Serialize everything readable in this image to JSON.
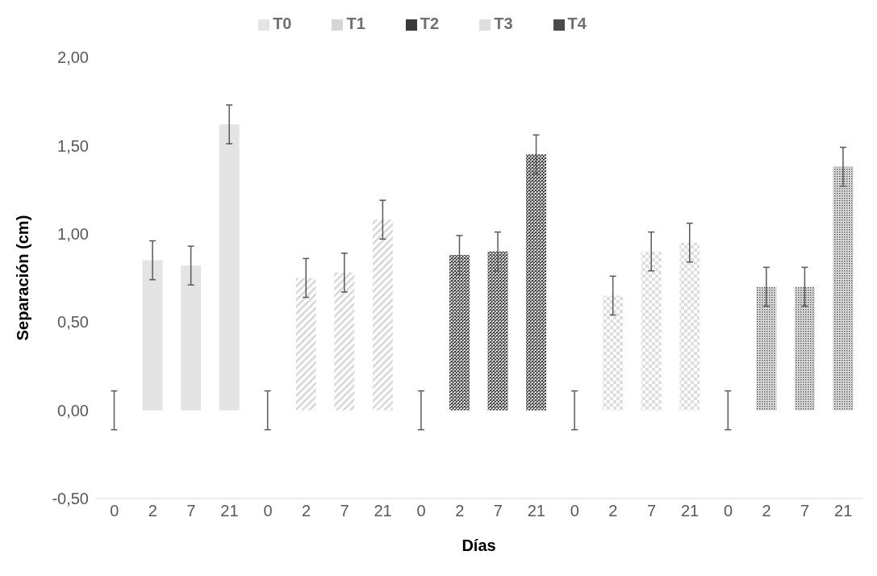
{
  "chart_data": {
    "type": "bar",
    "xlabel": "Días",
    "ylabel": "Separación (cm)",
    "categories": [
      "0",
      "2",
      "7",
      "21",
      "0",
      "2",
      "7",
      "21",
      "0",
      "2",
      "7",
      "21",
      "0",
      "2",
      "7",
      "21",
      "0",
      "2",
      "7",
      "21"
    ],
    "series": [
      {
        "name": "T0",
        "color": "#e4e4e4",
        "values": [
          0,
          0.85,
          0.82,
          1.62,
          null,
          null,
          null,
          null,
          null,
          null,
          null,
          null,
          null,
          null,
          null,
          null,
          null,
          null,
          null,
          null
        ],
        "errors": [
          0.11,
          0.11,
          0.11,
          0.11,
          null,
          null,
          null,
          null,
          null,
          null,
          null,
          null,
          null,
          null,
          null,
          null,
          null,
          null,
          null,
          null
        ]
      },
      {
        "name": "T1",
        "color": "#d6d6d6",
        "values": [
          null,
          null,
          null,
          null,
          0,
          0.75,
          0.78,
          1.08,
          null,
          null,
          null,
          null,
          null,
          null,
          null,
          null,
          null,
          null,
          null,
          null
        ],
        "errors": [
          null,
          null,
          null,
          null,
          0.11,
          0.11,
          0.11,
          0.11,
          null,
          null,
          null,
          null,
          null,
          null,
          null,
          null,
          null,
          null,
          null,
          null
        ]
      },
      {
        "name": "T2",
        "color": "#3a3a3a",
        "values": [
          null,
          null,
          null,
          null,
          null,
          null,
          null,
          null,
          0,
          0.88,
          0.9,
          1.45,
          null,
          null,
          null,
          null,
          null,
          null,
          null,
          null
        ],
        "errors": [
          null,
          null,
          null,
          null,
          null,
          null,
          null,
          null,
          0.11,
          0.11,
          0.11,
          0.11,
          null,
          null,
          null,
          null,
          null,
          null,
          null,
          null
        ]
      },
      {
        "name": "T3",
        "color": "#dedede",
        "values": [
          null,
          null,
          null,
          null,
          null,
          null,
          null,
          null,
          null,
          null,
          null,
          null,
          0,
          0.65,
          0.9,
          0.95,
          null,
          null,
          null,
          null
        ],
        "errors": [
          null,
          null,
          null,
          null,
          null,
          null,
          null,
          null,
          null,
          null,
          null,
          null,
          0.11,
          0.11,
          0.11,
          0.11,
          null,
          null,
          null,
          null
        ]
      },
      {
        "name": "T4",
        "color": "#4a4a4a",
        "values": [
          null,
          null,
          null,
          null,
          null,
          null,
          null,
          null,
          null,
          null,
          null,
          null,
          null,
          null,
          null,
          null,
          0,
          0.7,
          0.7,
          1.38
        ],
        "errors": [
          null,
          null,
          null,
          null,
          null,
          null,
          null,
          null,
          null,
          null,
          null,
          null,
          null,
          null,
          null,
          null,
          0.11,
          0.11,
          0.11,
          0.11
        ]
      }
    ],
    "ylim": [
      -0.5,
      2
    ],
    "yticks": [
      {
        "value": -0.5,
        "label": "-0,50"
      },
      {
        "value": 0,
        "label": "0,00"
      },
      {
        "value": 0.5,
        "label": "0,50"
      },
      {
        "value": 1,
        "label": "1,00"
      },
      {
        "value": 1.5,
        "label": "1,50"
      },
      {
        "value": 2,
        "label": "2,00"
      }
    ],
    "legend": "top",
    "grid": false
  }
}
